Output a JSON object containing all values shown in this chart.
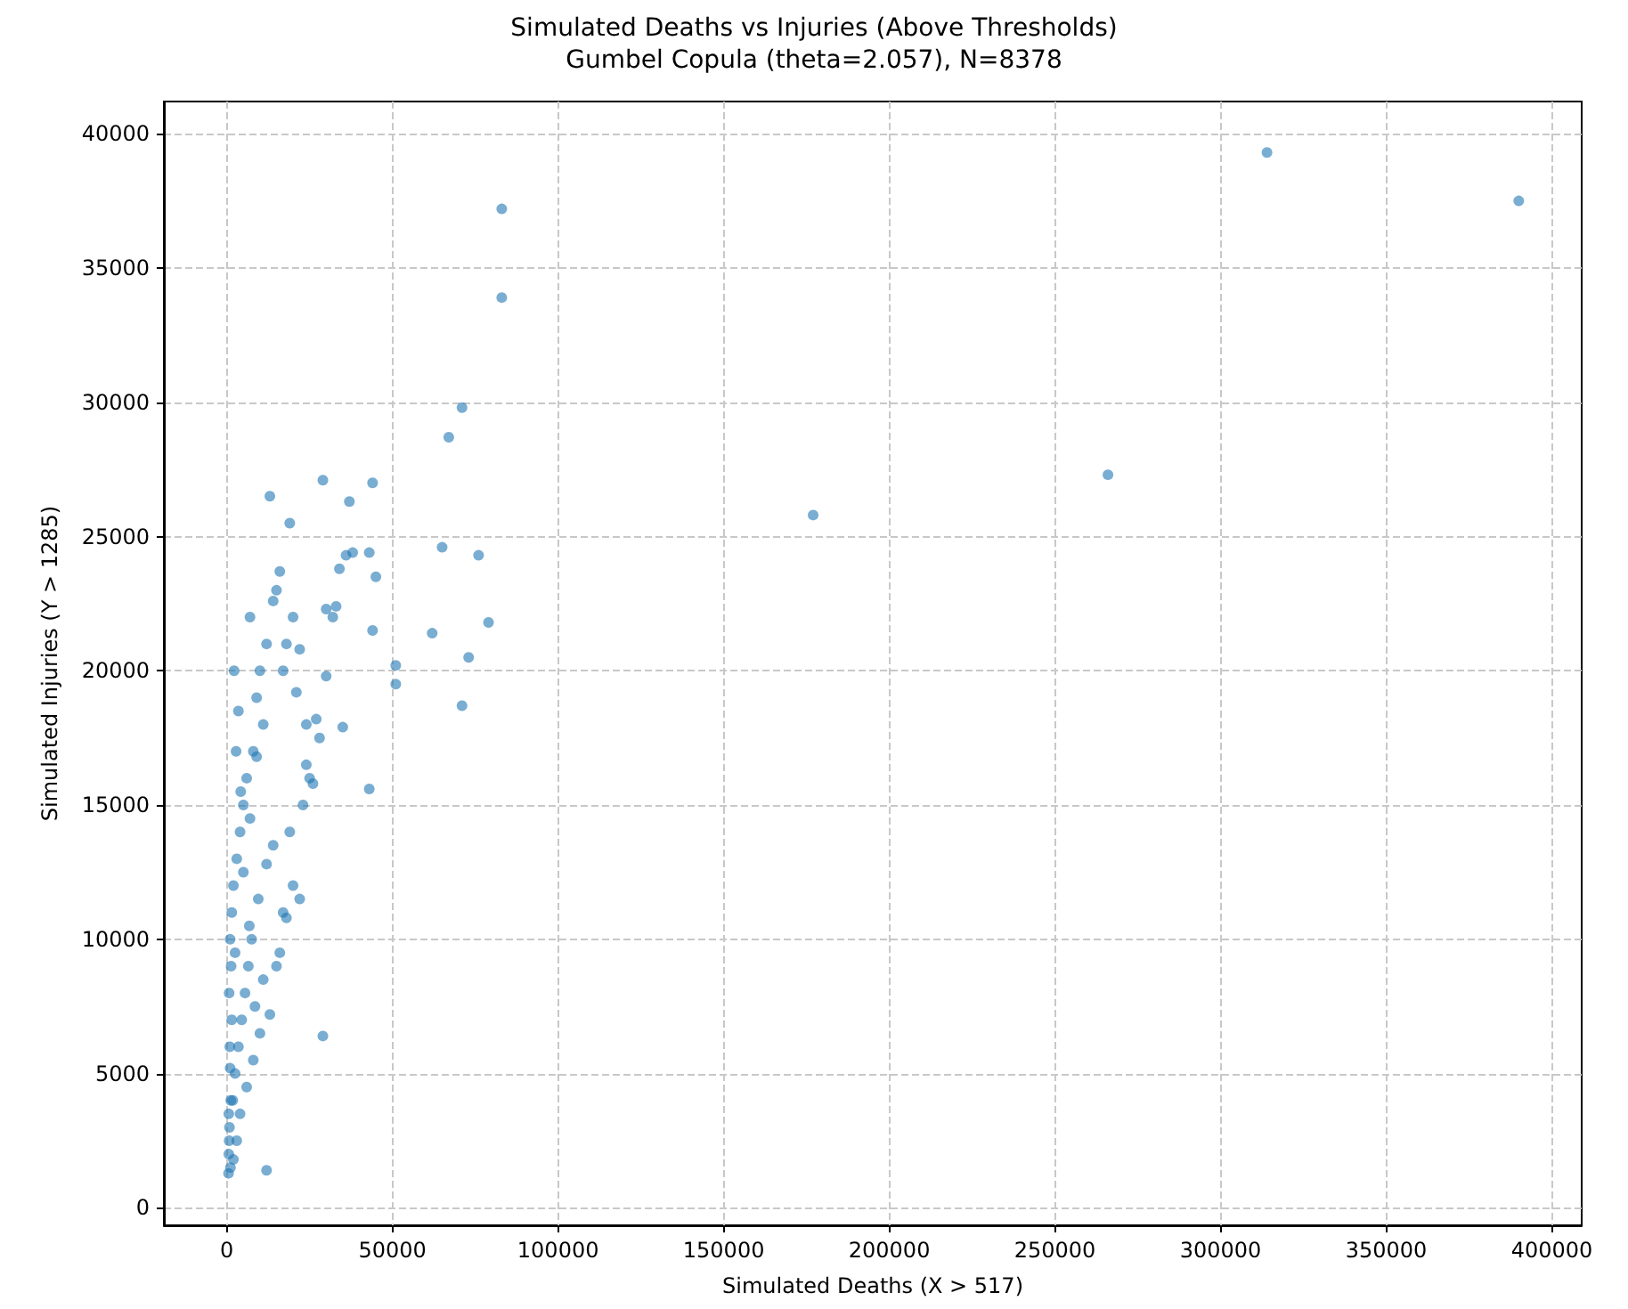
{
  "chart_data": {
    "type": "scatter",
    "title": "Simulated Deaths vs Injuries (Above Thresholds)",
    "subtitle": "Gumbel Copula (theta=2.057), N=8378",
    "xlabel": "Simulated Deaths (X > 517)",
    "ylabel": "Simulated Injuries (Y > 1285)",
    "x": [
      390000,
      314000,
      266000,
      177000,
      83000,
      83000,
      71000,
      67000,
      65000,
      76000,
      62000,
      79000,
      73000,
      71000,
      51000,
      51000,
      44000,
      37000,
      45000,
      44000,
      29000,
      13000,
      19000,
      38000,
      43000,
      36000,
      34000,
      16000,
      33000,
      30000,
      30000,
      29000,
      12000,
      43000,
      28000,
      24000,
      22000,
      25000,
      32000,
      35000,
      20000,
      18000,
      27000,
      24000,
      15000,
      21000,
      17000,
      23000,
      19000,
      14000,
      26000,
      20000,
      17000,
      12000,
      15000,
      11000,
      10000,
      9000,
      8000,
      7000,
      6000,
      5000,
      4000,
      3000,
      2000,
      1500,
      1000,
      700,
      517,
      600,
      800,
      1200,
      2500,
      3500,
      4500,
      5500,
      6500,
      7500,
      8500,
      9500,
      11000,
      13000,
      16000,
      18000,
      22000,
      2000,
      3000,
      4000,
      6000,
      8000,
      10000,
      14000,
      1000,
      2500,
      5000,
      7000,
      9000,
      12000,
      1500,
      3500,
      600,
      900,
      1300,
      2200,
      4200,
      6800,
      1800,
      2800,
      700,
      1100
    ],
    "values": [
      37500,
      39300,
      27300,
      25800,
      37200,
      33900,
      29800,
      28700,
      24600,
      24300,
      21400,
      21800,
      20500,
      18700,
      20200,
      19500,
      27000,
      26300,
      23500,
      21500,
      27100,
      26500,
      25500,
      24400,
      24400,
      24300,
      23800,
      23700,
      22400,
      22300,
      19800,
      6400,
      1400,
      15600,
      17500,
      18000,
      20800,
      16000,
      22000,
      17900,
      22000,
      21000,
      18200,
      16500,
      23000,
      19200,
      20000,
      15000,
      14000,
      22600,
      15800,
      12000,
      11000,
      21000,
      9000,
      18000,
      20000,
      19000,
      17000,
      22000,
      16000,
      15000,
      14000,
      13000,
      12000,
      11000,
      10000,
      8000,
      1285,
      2000,
      3000,
      4000,
      5000,
      6000,
      7000,
      8000,
      9000,
      10000,
      7500,
      11500,
      8500,
      7200,
      9500,
      10800,
      11500,
      1800,
      2500,
      3500,
      4500,
      5500,
      6500,
      13500,
      5200,
      9500,
      12500,
      14500,
      16800,
      12800,
      7000,
      18500,
      3500,
      6000,
      9000,
      20000,
      15500,
      10500,
      4000,
      17000,
      2500,
      1500
    ],
    "color": "#1f77b4",
    "marker": "circle",
    "grid": true,
    "xlim": [
      -19000,
      409000
    ],
    "xticks": [
      0,
      50000,
      100000,
      150000,
      200000,
      250000,
      300000,
      350000,
      400000
    ],
    "ylim": [
      -650,
      41200
    ],
    "yticks": [
      0,
      5000,
      10000,
      15000,
      20000,
      25000,
      30000,
      35000,
      40000
    ]
  }
}
